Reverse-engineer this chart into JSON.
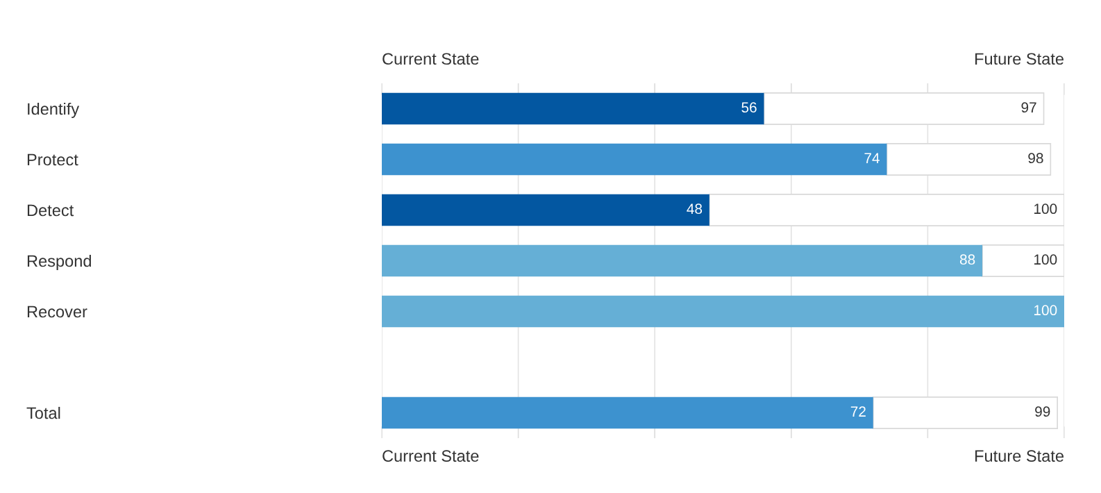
{
  "chart_data": {
    "type": "bar",
    "orientation": "horizontal",
    "stacked": true,
    "categories": [
      "Identify",
      "Protect",
      "Detect",
      "Respond",
      "Recover",
      null,
      "Total"
    ],
    "series": [
      {
        "colors": [
          "#0357a1",
          "#3d92cf",
          "#0357a1",
          "#65afd6",
          "#65afd6",
          null,
          "#3d92cf"
        ],
        "values": [
          56,
          74,
          48,
          88,
          100,
          null,
          72
        ],
        "value_labels": [
          "56",
          "74",
          "48",
          "88",
          "100",
          null,
          "72"
        ]
      },
      {
        "color": "#ffffff",
        "values": [
          41,
          24,
          52,
          12,
          0,
          null,
          27
        ]
      }
    ],
    "totals": [
      "97",
      "98",
      "100",
      "100",
      null,
      null,
      "99"
    ],
    "annotations": [
      "Current State",
      "Future State",
      "Current State",
      "Future State"
    ],
    "xlim": [
      0,
      100
    ],
    "xticks": [
      {
        "value": 0,
        "label": null
      },
      {
        "value": 20,
        "label": null
      },
      {
        "value": 40,
        "label": null
      },
      {
        "value": 60,
        "label": null
      },
      {
        "value": 80,
        "label": null
      },
      {
        "value": 100,
        "label": null
      }
    ],
    "grid": "x"
  }
}
